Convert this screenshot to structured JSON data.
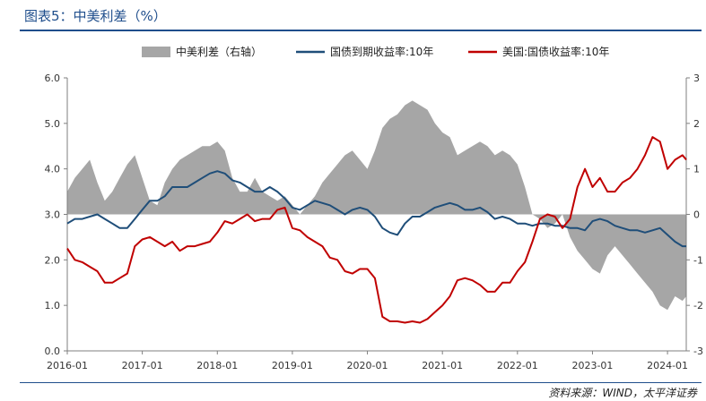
{
  "figure": {
    "title": "图表5：中美利差（%）",
    "source": "资料来源：WIND，太平洋证券"
  },
  "chart_data": {
    "type": "line",
    "title": "",
    "xlabel": "",
    "ylabel": "",
    "x_ticks": [
      "2016-01",
      "2017-01",
      "2018-01",
      "2019-01",
      "2020-01",
      "2021-01",
      "2022-01",
      "2023-01",
      "2024-01"
    ],
    "x_range": [
      2016.0,
      2024.25
    ],
    "left_axis": {
      "range": [
        0,
        6
      ],
      "ticks": [
        "0.0",
        "1.0",
        "2.0",
        "3.0",
        "4.0",
        "5.0",
        "6.0"
      ]
    },
    "right_axis": {
      "range": [
        -3,
        3
      ],
      "ticks": [
        "-3",
        "-2",
        "-1",
        "0",
        "1",
        "2",
        "3"
      ]
    },
    "legend_position": "top",
    "x": [
      2016.0,
      2016.1,
      2016.2,
      2016.3,
      2016.4,
      2016.5,
      2016.6,
      2016.7,
      2016.8,
      2016.9,
      2017.0,
      2017.1,
      2017.2,
      2017.3,
      2017.4,
      2017.5,
      2017.6,
      2017.7,
      2017.8,
      2017.9,
      2018.0,
      2018.1,
      2018.2,
      2018.3,
      2018.4,
      2018.5,
      2018.6,
      2018.7,
      2018.8,
      2018.9,
      2019.0,
      2019.1,
      2019.2,
      2019.3,
      2019.4,
      2019.5,
      2019.6,
      2019.7,
      2019.8,
      2019.9,
      2020.0,
      2020.1,
      2020.2,
      2020.3,
      2020.4,
      2020.5,
      2020.6,
      2020.7,
      2020.8,
      2020.9,
      2021.0,
      2021.1,
      2021.2,
      2021.3,
      2021.4,
      2021.5,
      2021.6,
      2021.7,
      2021.8,
      2021.9,
      2022.0,
      2022.1,
      2022.2,
      2022.3,
      2022.4,
      2022.5,
      2022.6,
      2022.7,
      2022.8,
      2022.9,
      2023.0,
      2023.1,
      2023.2,
      2023.3,
      2023.4,
      2023.5,
      2023.6,
      2023.7,
      2023.8,
      2023.9,
      2024.0,
      2024.1,
      2024.2,
      2024.25
    ],
    "series": [
      {
        "name": "中美利差（右轴）",
        "axis": "right",
        "style": "area",
        "color": "#a6a6a6",
        "values": [
          0.5,
          0.8,
          1.0,
          1.2,
          0.7,
          0.3,
          0.5,
          0.8,
          1.1,
          1.3,
          0.8,
          0.3,
          0.2,
          0.7,
          1.0,
          1.2,
          1.3,
          1.4,
          1.5,
          1.5,
          1.6,
          1.4,
          0.8,
          0.5,
          0.5,
          0.8,
          0.5,
          0.4,
          0.3,
          0.4,
          0.2,
          0.0,
          0.2,
          0.4,
          0.7,
          0.9,
          1.1,
          1.3,
          1.4,
          1.2,
          1.0,
          1.4,
          1.9,
          2.1,
          2.2,
          2.4,
          2.5,
          2.4,
          2.3,
          2.0,
          1.8,
          1.7,
          1.3,
          1.4,
          1.5,
          1.6,
          1.5,
          1.3,
          1.4,
          1.3,
          1.1,
          0.6,
          0.0,
          -0.1,
          -0.3,
          -0.2,
          0.0,
          -0.5,
          -0.8,
          -1.0,
          -1.2,
          -1.3,
          -0.9,
          -0.7,
          -0.9,
          -1.1,
          -1.3,
          -1.5,
          -1.7,
          -2.0,
          -2.1,
          -1.8,
          -1.9,
          -1.8
        ]
      },
      {
        "name": "国债到期收益率:10年",
        "axis": "left",
        "style": "line",
        "color": "#1f4e79",
        "values": [
          2.8,
          2.9,
          2.9,
          2.95,
          3.0,
          2.9,
          2.8,
          2.7,
          2.7,
          2.9,
          3.1,
          3.3,
          3.3,
          3.4,
          3.6,
          3.6,
          3.6,
          3.7,
          3.8,
          3.9,
          3.95,
          3.9,
          3.75,
          3.7,
          3.6,
          3.5,
          3.5,
          3.6,
          3.5,
          3.35,
          3.15,
          3.1,
          3.2,
          3.3,
          3.25,
          3.2,
          3.1,
          3.0,
          3.1,
          3.15,
          3.1,
          2.95,
          2.7,
          2.6,
          2.55,
          2.8,
          2.95,
          2.95,
          3.05,
          3.15,
          3.2,
          3.25,
          3.2,
          3.1,
          3.1,
          3.15,
          3.05,
          2.9,
          2.95,
          2.9,
          2.8,
          2.8,
          2.75,
          2.8,
          2.8,
          2.75,
          2.75,
          2.7,
          2.7,
          2.65,
          2.85,
          2.9,
          2.85,
          2.75,
          2.7,
          2.65,
          2.65,
          2.6,
          2.65,
          2.7,
          2.55,
          2.4,
          2.3,
          2.3
        ]
      },
      {
        "name": "美国:国债收益率:10年",
        "axis": "left",
        "style": "line",
        "color": "#c00000",
        "values": [
          2.25,
          2.0,
          1.95,
          1.85,
          1.75,
          1.5,
          1.5,
          1.6,
          1.7,
          2.3,
          2.45,
          2.5,
          2.4,
          2.3,
          2.4,
          2.2,
          2.3,
          2.3,
          2.35,
          2.4,
          2.6,
          2.85,
          2.8,
          2.9,
          3.0,
          2.85,
          2.9,
          2.9,
          3.1,
          3.15,
          2.7,
          2.65,
          2.5,
          2.4,
          2.3,
          2.05,
          2.0,
          1.75,
          1.7,
          1.8,
          1.8,
          1.6,
          0.75,
          0.65,
          0.65,
          0.62,
          0.65,
          0.62,
          0.7,
          0.85,
          1.0,
          1.2,
          1.55,
          1.6,
          1.55,
          1.45,
          1.3,
          1.3,
          1.5,
          1.5,
          1.75,
          1.95,
          2.4,
          2.9,
          3.0,
          2.95,
          2.7,
          2.9,
          3.6,
          4.0,
          3.6,
          3.8,
          3.5,
          3.5,
          3.7,
          3.8,
          4.0,
          4.3,
          4.7,
          4.6,
          4.0,
          4.2,
          4.3,
          4.2
        ]
      }
    ]
  }
}
